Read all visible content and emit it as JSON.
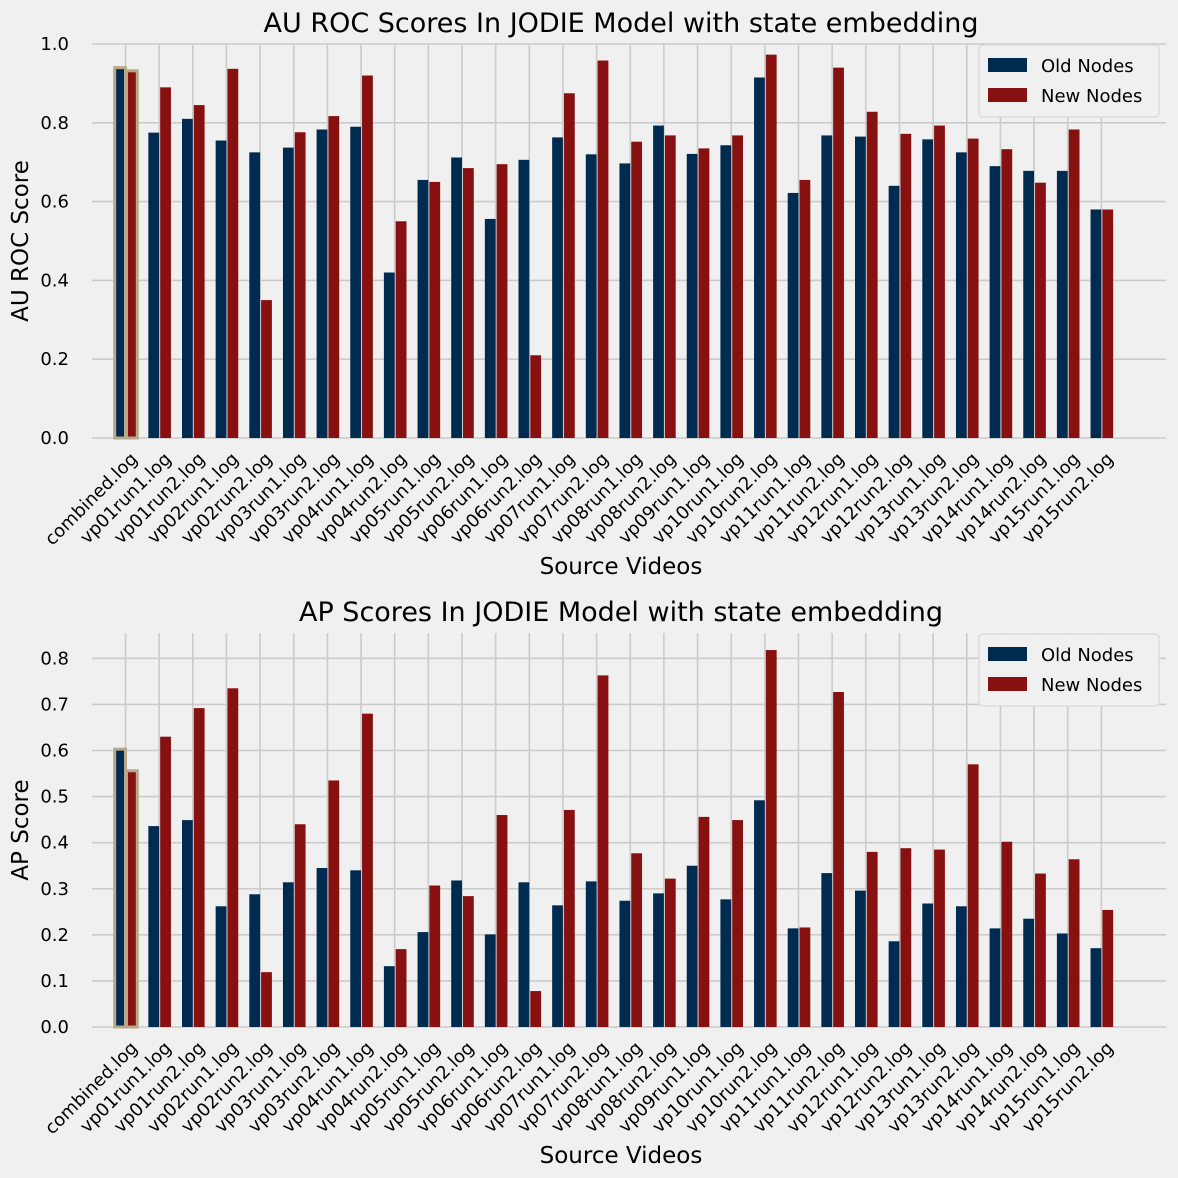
{
  "colors": {
    "background": "#f0f0f0",
    "grid": "#cbcbcb",
    "old": "#002b51",
    "new": "#871010",
    "highlight": "#b8a88a"
  },
  "chart_data": [
    {
      "type": "bar",
      "title": "AU ROC Scores In JODIE Model with state embedding",
      "xlabel": "Source Videos",
      "ylabel": "AU ROC Score",
      "ylim": [
        0,
        1.0
      ],
      "yticks": [
        0.0,
        0.2,
        0.4,
        0.6,
        0.8,
        1.0
      ],
      "grid": true,
      "legend_position": "top-right",
      "categories": [
        "combined.log",
        "vp01run1.log",
        "vp01run2.log",
        "vp02run1.log",
        "vp02run2.log",
        "vp03run1.log",
        "vp03run2.log",
        "vp04run1.log",
        "vp04run2.log",
        "vp05run1.log",
        "vp05run2.log",
        "vp06run1.log",
        "vp06run2.log",
        "vp07run1.log",
        "vp07run2.log",
        "vp08run1.log",
        "vp08run2.log",
        "vp09run1.log",
        "vp10run1.log",
        "vp10run2.log",
        "vp11run1.log",
        "vp11run2.log",
        "vp12run1.log",
        "vp12run2.log",
        "vp13run1.log",
        "vp13run2.log",
        "vp14run1.log",
        "vp14run2.log",
        "vp15run1.log",
        "vp15run2.log"
      ],
      "highlighted_category": "combined.log",
      "series": [
        {
          "name": "Old Nodes",
          "values": [
            0.94,
            0.775,
            0.81,
            0.755,
            0.725,
            0.737,
            0.783,
            0.79,
            0.42,
            0.655,
            0.712,
            0.556,
            0.706,
            0.763,
            0.72,
            0.697,
            0.793,
            0.721,
            0.743,
            0.915,
            0.622,
            0.768,
            0.765,
            0.64,
            0.758,
            0.725,
            0.69,
            0.678,
            0.678,
            0.58
          ]
        },
        {
          "name": "New Nodes",
          "values": [
            0.932,
            0.89,
            0.845,
            0.937,
            0.35,
            0.776,
            0.817,
            0.92,
            0.55,
            0.65,
            0.685,
            0.695,
            0.21,
            0.875,
            0.958,
            0.752,
            0.768,
            0.735,
            0.768,
            0.973,
            0.655,
            0.94,
            0.828,
            0.772,
            0.793,
            0.76,
            0.733,
            0.648,
            0.783,
            0.58
          ]
        }
      ]
    },
    {
      "type": "bar",
      "title": "AP Scores In JODIE Model with state embedding",
      "xlabel": "Source Videos",
      "ylabel": "AP Score",
      "ylim": [
        0,
        0.855
      ],
      "yticks": [
        0.0,
        0.1,
        0.2,
        0.3,
        0.4,
        0.5,
        0.6,
        0.7,
        0.8
      ],
      "grid": true,
      "legend_position": "top-right",
      "categories": [
        "combined.log",
        "vp01run1.log",
        "vp01run2.log",
        "vp02run1.log",
        "vp02run2.log",
        "vp03run1.log",
        "vp03run2.log",
        "vp04run1.log",
        "vp04run2.log",
        "vp05run1.log",
        "vp05run2.log",
        "vp06run1.log",
        "vp06run2.log",
        "vp07run1.log",
        "vp07run2.log",
        "vp08run1.log",
        "vp08run2.log",
        "vp09run1.log",
        "vp10run1.log",
        "vp10run2.log",
        "vp11run1.log",
        "vp11run2.log",
        "vp12run1.log",
        "vp12run2.log",
        "vp13run1.log",
        "vp13run2.log",
        "vp14run1.log",
        "vp14run2.log",
        "vp15run1.log",
        "vp15run2.log"
      ],
      "highlighted_category": "combined.log",
      "series": [
        {
          "name": "Old Nodes",
          "values": [
            0.603,
            0.436,
            0.449,
            0.262,
            0.288,
            0.314,
            0.345,
            0.34,
            0.132,
            0.206,
            0.318,
            0.201,
            0.314,
            0.264,
            0.316,
            0.274,
            0.29,
            0.35,
            0.277,
            0.492,
            0.214,
            0.334,
            0.296,
            0.186,
            0.268,
            0.262,
            0.214,
            0.235,
            0.203,
            0.171
          ]
        },
        {
          "name": "New Nodes",
          "values": [
            0.556,
            0.63,
            0.692,
            0.735,
            0.119,
            0.44,
            0.535,
            0.68,
            0.169,
            0.307,
            0.284,
            0.46,
            0.078,
            0.471,
            0.763,
            0.377,
            0.322,
            0.456,
            0.449,
            0.818,
            0.216,
            0.727,
            0.38,
            0.388,
            0.385,
            0.57,
            0.402,
            0.333,
            0.364,
            0.254
          ]
        }
      ]
    }
  ]
}
